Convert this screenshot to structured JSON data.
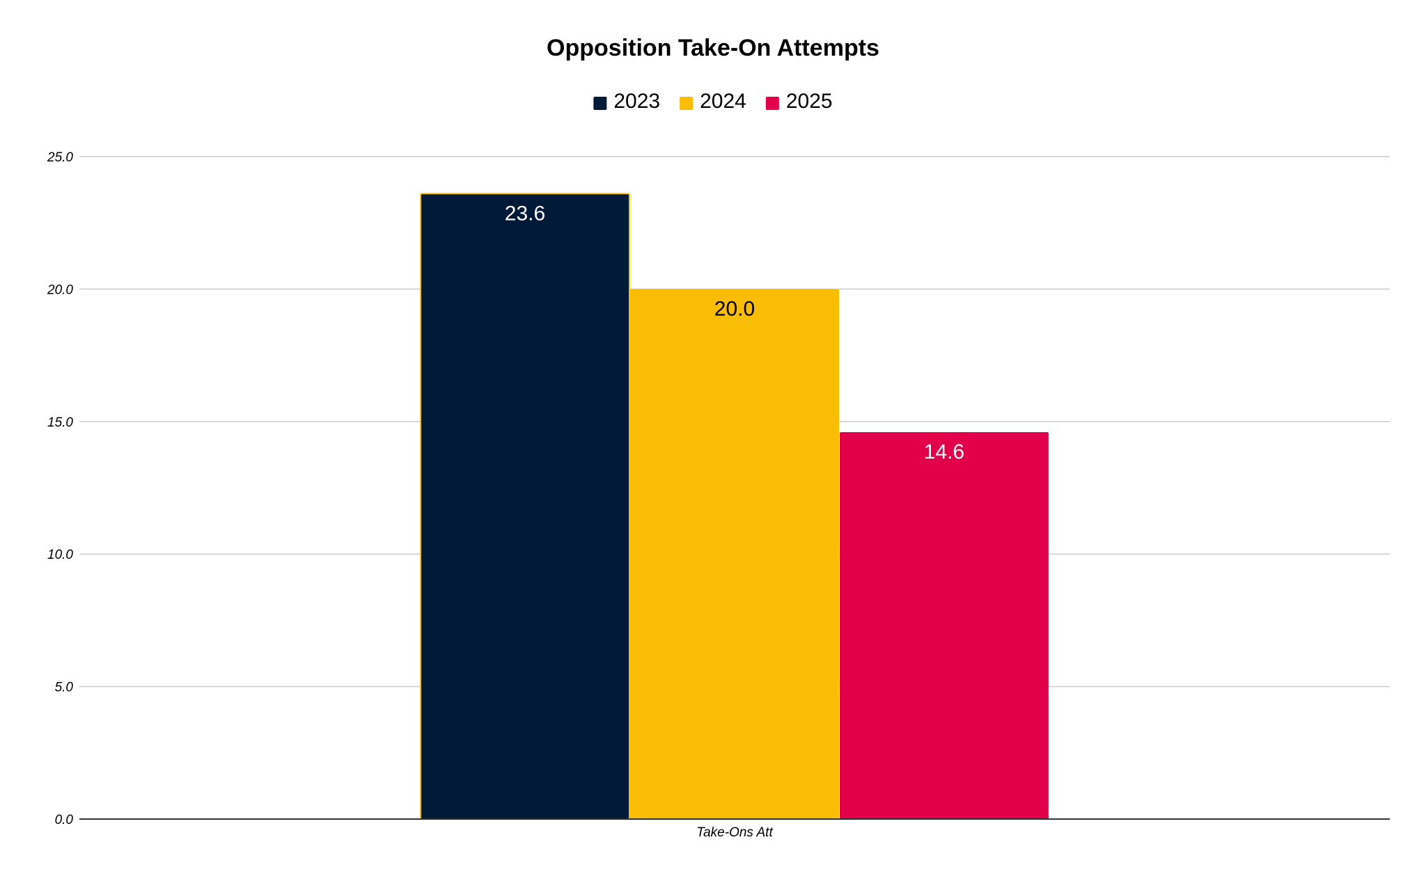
{
  "chart_data": {
    "type": "bar",
    "title": "Opposition Take-On Attempts",
    "xlabel": "",
    "ylabel": "",
    "categories": [
      "Take-Ons Att"
    ],
    "series": [
      {
        "name": "2023",
        "values": [
          23.6
        ],
        "color": "#001a38",
        "label_color": "#ffffff",
        "value_label": "23.6"
      },
      {
        "name": "2024",
        "values": [
          20.0
        ],
        "color": "#f9bd05",
        "label_color": "#000000",
        "value_label": "20.0"
      },
      {
        "name": "2025",
        "values": [
          14.6
        ],
        "color": "#e2004b",
        "label_color": "#ffffff",
        "value_label": "14.6"
      }
    ],
    "ylim": [
      0,
      25
    ],
    "yticks": [
      0,
      5,
      10,
      15,
      20,
      25
    ],
    "ytick_labels": [
      "0.0",
      "5.0",
      "10.0",
      "15.0",
      "20.0",
      "25.0"
    ],
    "grid": true,
    "legend_position": "top-center",
    "bar_outline_color": "#f9bd05"
  }
}
